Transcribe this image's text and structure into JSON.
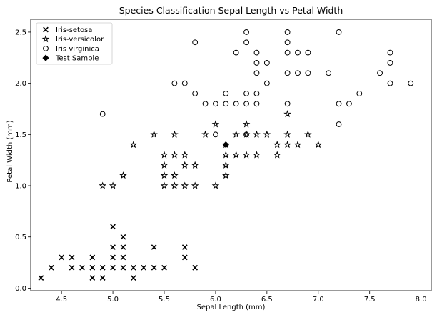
{
  "chart_data": {
    "type": "scatter",
    "title": "Species Classification Sepal Length vs Petal Width",
    "xlabel": "Sepal Length (mm)",
    "ylabel": "Petal Width (mm)",
    "xlim": [
      4.2,
      8.1
    ],
    "ylim": [
      -0.025,
      2.625
    ],
    "xticks": [
      "4.5",
      "5.0",
      "5.5",
      "6.0",
      "6.5",
      "7.0",
      "7.5",
      "8.0"
    ],
    "yticks": [
      "0.0",
      "0.5",
      "1.0",
      "1.5",
      "2.0",
      "2.5"
    ],
    "grid": false,
    "legend_position": "top-left",
    "series": [
      {
        "name": "Iris-setosa",
        "marker": "x",
        "points": [
          [
            4.3,
            0.1
          ],
          [
            4.4,
            0.2
          ],
          [
            4.5,
            0.3
          ],
          [
            4.6,
            0.2
          ],
          [
            4.6,
            0.3
          ],
          [
            4.7,
            0.2
          ],
          [
            4.8,
            0.1
          ],
          [
            4.8,
            0.2
          ],
          [
            4.8,
            0.3
          ],
          [
            4.9,
            0.1
          ],
          [
            4.9,
            0.2
          ],
          [
            5.0,
            0.2
          ],
          [
            5.0,
            0.3
          ],
          [
            5.0,
            0.4
          ],
          [
            5.0,
            0.6
          ],
          [
            5.1,
            0.2
          ],
          [
            5.1,
            0.3
          ],
          [
            5.1,
            0.4
          ],
          [
            5.1,
            0.5
          ],
          [
            5.2,
            0.1
          ],
          [
            5.2,
            0.2
          ],
          [
            5.3,
            0.2
          ],
          [
            5.4,
            0.2
          ],
          [
            5.4,
            0.4
          ],
          [
            5.5,
            0.2
          ],
          [
            5.7,
            0.3
          ],
          [
            5.7,
            0.4
          ],
          [
            5.8,
            0.2
          ]
        ]
      },
      {
        "name": "Iris-versicolor",
        "marker": "star",
        "points": [
          [
            4.9,
            1.0
          ],
          [
            5.0,
            1.0
          ],
          [
            5.1,
            1.1
          ],
          [
            5.2,
            1.4
          ],
          [
            5.4,
            1.5
          ],
          [
            5.5,
            1.0
          ],
          [
            5.5,
            1.1
          ],
          [
            5.5,
            1.2
          ],
          [
            5.5,
            1.3
          ],
          [
            5.6,
            1.0
          ],
          [
            5.6,
            1.1
          ],
          [
            5.6,
            1.3
          ],
          [
            5.6,
            1.5
          ],
          [
            5.7,
            1.0
          ],
          [
            5.7,
            1.2
          ],
          [
            5.7,
            1.3
          ],
          [
            5.8,
            1.0
          ],
          [
            5.8,
            1.2
          ],
          [
            5.9,
            1.5
          ],
          [
            6.0,
            1.0
          ],
          [
            6.0,
            1.6
          ],
          [
            6.1,
            1.1
          ],
          [
            6.1,
            1.2
          ],
          [
            6.1,
            1.3
          ],
          [
            6.1,
            1.4
          ],
          [
            6.2,
            1.3
          ],
          [
            6.2,
            1.5
          ],
          [
            6.3,
            1.3
          ],
          [
            6.3,
            1.5
          ],
          [
            6.3,
            1.6
          ],
          [
            6.4,
            1.3
          ],
          [
            6.4,
            1.5
          ],
          [
            6.5,
            1.5
          ],
          [
            6.6,
            1.3
          ],
          [
            6.6,
            1.4
          ],
          [
            6.7,
            1.4
          ],
          [
            6.7,
            1.5
          ],
          [
            6.7,
            1.7
          ],
          [
            6.8,
            1.4
          ],
          [
            6.9,
            1.5
          ],
          [
            7.0,
            1.4
          ]
        ]
      },
      {
        "name": "Iris-virginica",
        "marker": "circle-open",
        "points": [
          [
            4.9,
            1.7
          ],
          [
            5.6,
            2.0
          ],
          [
            5.7,
            2.0
          ],
          [
            5.8,
            1.9
          ],
          [
            5.8,
            2.4
          ],
          [
            5.9,
            1.8
          ],
          [
            6.0,
            1.5
          ],
          [
            6.0,
            1.8
          ],
          [
            6.1,
            1.8
          ],
          [
            6.1,
            1.9
          ],
          [
            6.2,
            1.8
          ],
          [
            6.2,
            2.3
          ],
          [
            6.3,
            1.5
          ],
          [
            6.3,
            1.8
          ],
          [
            6.3,
            1.9
          ],
          [
            6.3,
            2.4
          ],
          [
            6.3,
            2.5
          ],
          [
            6.4,
            1.8
          ],
          [
            6.4,
            1.9
          ],
          [
            6.4,
            2.1
          ],
          [
            6.4,
            2.2
          ],
          [
            6.4,
            2.3
          ],
          [
            6.5,
            2.0
          ],
          [
            6.5,
            2.2
          ],
          [
            6.7,
            1.8
          ],
          [
            6.7,
            2.1
          ],
          [
            6.7,
            2.3
          ],
          [
            6.7,
            2.4
          ],
          [
            6.7,
            2.5
          ],
          [
            6.8,
            2.1
          ],
          [
            6.8,
            2.3
          ],
          [
            6.9,
            2.1
          ],
          [
            6.9,
            2.3
          ],
          [
            7.1,
            2.1
          ],
          [
            7.2,
            1.6
          ],
          [
            7.2,
            1.8
          ],
          [
            7.2,
            2.5
          ],
          [
            7.3,
            1.8
          ],
          [
            7.4,
            1.9
          ],
          [
            7.6,
            2.1
          ],
          [
            7.7,
            2.0
          ],
          [
            7.7,
            2.2
          ],
          [
            7.7,
            2.3
          ],
          [
            7.9,
            2.0
          ]
        ]
      },
      {
        "name": "Test Sample",
        "marker": "diamond-filled",
        "points": [
          [
            6.1,
            1.4
          ]
        ]
      }
    ]
  }
}
